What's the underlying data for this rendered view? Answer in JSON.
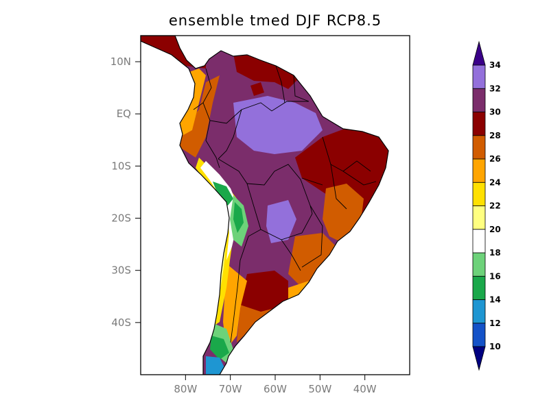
{
  "title": "ensemble tmed DJF RCP8.5",
  "map": {
    "projection": "cylindrical equidistant",
    "lon_range": [
      -90,
      -30
    ],
    "lat_range": [
      -50,
      15
    ],
    "y_ticks": [
      {
        "lat": 10,
        "label": "10N"
      },
      {
        "lat": 0,
        "label": "EQ"
      },
      {
        "lat": -10,
        "label": "10S"
      },
      {
        "lat": -20,
        "label": "20S"
      },
      {
        "lat": -30,
        "label": "30S"
      },
      {
        "lat": -40,
        "label": "40S"
      }
    ],
    "x_ticks": [
      {
        "lon": -80,
        "label": "80W"
      },
      {
        "lon": -70,
        "label": "70W"
      },
      {
        "lon": -60,
        "label": "60W"
      },
      {
        "lon": -50,
        "label": "50W"
      },
      {
        "lon": -40,
        "label": "40W"
      }
    ]
  },
  "colorbar": {
    "levels": [
      "10",
      "12",
      "14",
      "16",
      "18",
      "20",
      "22",
      "24",
      "26",
      "28",
      "30",
      "32",
      "34"
    ],
    "colors": [
      "#0a2a9e",
      "#1452c8",
      "#1e96d2",
      "#1aa84a",
      "#6dd27a",
      "#ffffff",
      "#ffff80",
      "#ffe000",
      "#ffa500",
      "#d15c00",
      "#8b0000",
      "#7b2d6b",
      "#9370db",
      "#3a0088"
    ],
    "under_color": "#000080",
    "over_color": "#3a0088"
  }
}
